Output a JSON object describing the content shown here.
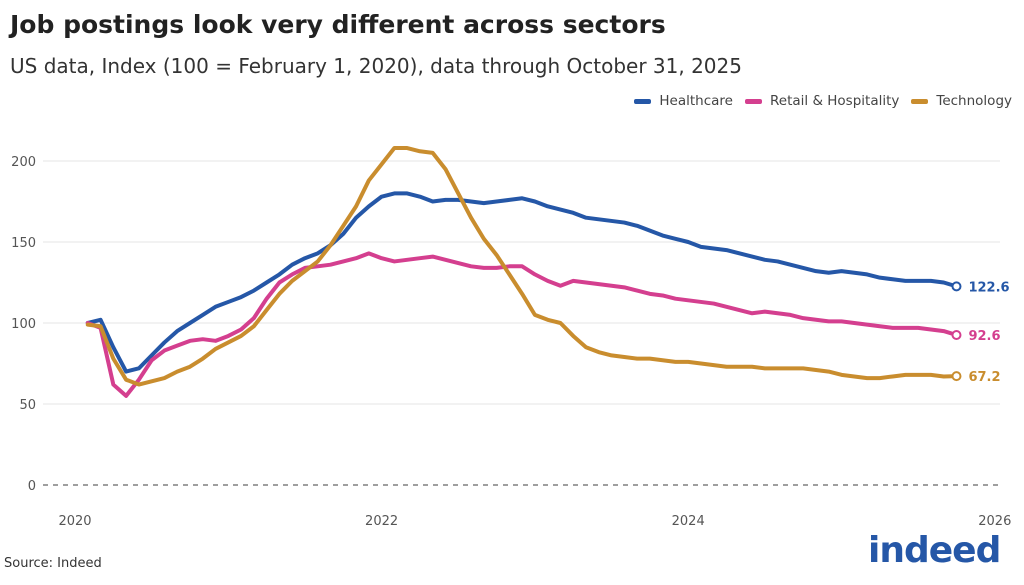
{
  "header": {
    "title": "Job postings look very different across sectors",
    "subtitle": "US data, Index (100 = February 1, 2020), data through October 31, 2025"
  },
  "footer": {
    "source": "Source: Indeed",
    "logo": "indeed"
  },
  "chart_data": {
    "type": "line",
    "title": "Job postings look very different across sectors",
    "xlabel": "",
    "ylabel": "",
    "ylim": [
      0,
      210
    ],
    "yticks": [
      "0",
      "50",
      "100",
      "150",
      "200"
    ],
    "xticks": [
      "2020",
      "2022",
      "2024",
      "2026"
    ],
    "x_start": "2020-02",
    "x_step": "month",
    "grid": true,
    "legend": "top-right",
    "series": [
      {
        "name": "Healthcare",
        "color": "#2557a7",
        "end_label": "122.6",
        "values": [
          100,
          102,
          85,
          70,
          72,
          80,
          88,
          95,
          100,
          105,
          110,
          113,
          116,
          120,
          125,
          130,
          136,
          140,
          143,
          148,
          155,
          165,
          172,
          178,
          180,
          180,
          178,
          175,
          176,
          176,
          175,
          174,
          175,
          176,
          177,
          175,
          172,
          170,
          168,
          165,
          164,
          163,
          162,
          160,
          157,
          154,
          152,
          150,
          147,
          146,
          145,
          143,
          141,
          139,
          138,
          136,
          134,
          132,
          131,
          132,
          131,
          130,
          128,
          127,
          126,
          126,
          126,
          125,
          122.6
        ]
      },
      {
        "name": "Retail & Hospitality",
        "color": "#d43f8f",
        "end_label": "92.6",
        "values": [
          100,
          97,
          62,
          55,
          65,
          77,
          83,
          86,
          89,
          90,
          89,
          92,
          96,
          103,
          115,
          125,
          130,
          134,
          135,
          136,
          138,
          140,
          143,
          140,
          138,
          139,
          140,
          141,
          139,
          137,
          135,
          134,
          134,
          135,
          135,
          130,
          126,
          123,
          126,
          125,
          124,
          123,
          122,
          120,
          118,
          117,
          115,
          114,
          113,
          112,
          110,
          108,
          106,
          107,
          106,
          105,
          103,
          102,
          101,
          101,
          100,
          99,
          98,
          97,
          97,
          97,
          96,
          95,
          92.6
        ]
      },
      {
        "name": "Technology",
        "color": "#c98d2e",
        "end_label": "67.2",
        "values": [
          99,
          98,
          78,
          65,
          62,
          64,
          66,
          70,
          73,
          78,
          84,
          88,
          92,
          98,
          108,
          118,
          126,
          132,
          138,
          148,
          160,
          172,
          188,
          198,
          208,
          208,
          206,
          205,
          195,
          180,
          165,
          152,
          142,
          130,
          118,
          105,
          102,
          100,
          92,
          85,
          82,
          80,
          79,
          78,
          78,
          77,
          76,
          76,
          75,
          74,
          73,
          73,
          73,
          72,
          72,
          72,
          72,
          71,
          70,
          68,
          67,
          66,
          66,
          67,
          68,
          68,
          68,
          67,
          67.2
        ]
      }
    ]
  }
}
